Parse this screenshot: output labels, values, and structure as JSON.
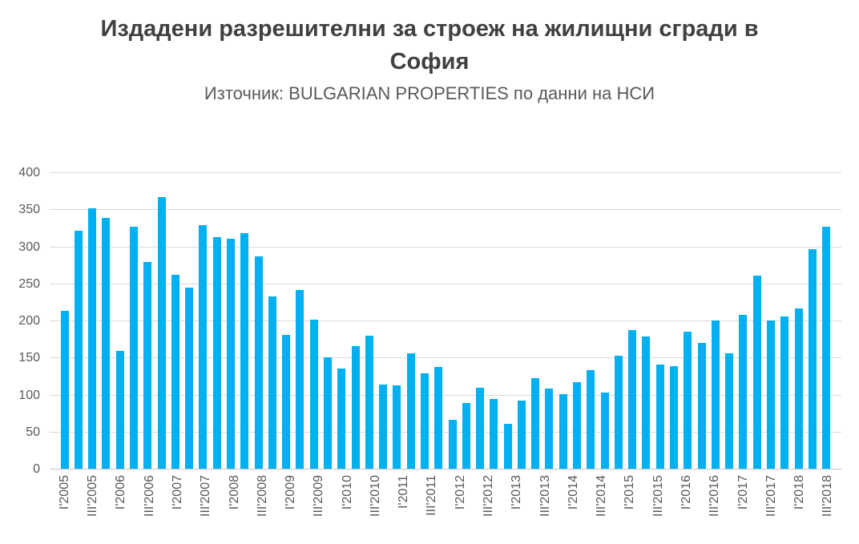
{
  "header": {
    "title": "Издадени разрешителни за строеж на жилищни сгради в София",
    "subtitle": "Източник: BULGARIAN PROPERTIES по данни на НСИ"
  },
  "chart_data": {
    "type": "bar",
    "title": "Издадени разрешителни за строеж на жилищни сгради в София",
    "subtitle": "Източник: BULGARIAN PROPERTIES по данни на НСИ",
    "categories": [
      "I'2005",
      "II'2005",
      "III'2005",
      "IV'2005",
      "I'2006",
      "II'2006",
      "III'2006",
      "IV'2006",
      "I'2007",
      "II'2007",
      "III'2007",
      "IV'2007",
      "I'2008",
      "II'2008",
      "III'2008",
      "IV'2008",
      "I'2009",
      "II'2009",
      "III'2009",
      "IV'2009",
      "I'2010",
      "II'2010",
      "III'2010",
      "IV'2010",
      "I'2011",
      "II'2011",
      "III'2011",
      "IV'2011",
      "I'2012",
      "II'2012",
      "III'2012",
      "IV'2012",
      "I'2013",
      "II'2013",
      "III'2013",
      "IV'2013",
      "I'2014",
      "II'2014",
      "III'2014",
      "IV'2014",
      "I'2015",
      "II'2015",
      "III'2015",
      "IV'2015",
      "I'2016",
      "II'2016",
      "III'2016",
      "IV'2016",
      "I'2017",
      "II'2017",
      "III'2017",
      "IV'2017",
      "I'2018",
      "II'2018",
      "III'2018",
      "IV'2018"
    ],
    "values": [
      214,
      322,
      352,
      340,
      160,
      328,
      280,
      368,
      263,
      245,
      330,
      313,
      311,
      319,
      288,
      233,
      182,
      242,
      202,
      151,
      136,
      167,
      181,
      115,
      113,
      157,
      130,
      138,
      67,
      90,
      110,
      95,
      62,
      93,
      123,
      109,
      102,
      118,
      134,
      104,
      154,
      188,
      180,
      142,
      140,
      186,
      171,
      201,
      157,
      209,
      262,
      201,
      206,
      217,
      297,
      328
    ],
    "visible_x_tick_labels": [
      "I'2005",
      "III'2005",
      "I'2006",
      "III'2006",
      "I'2007",
      "III'2007",
      "I'2008",
      "III'2008",
      "I'2009",
      "III'2009",
      "I'2010",
      "III'2010",
      "I'2011",
      "III'2011",
      "I'2012",
      "III'2012",
      "I'2013",
      "III'2013",
      "I'2014",
      "III'2014",
      "I'2015",
      "III'2015",
      "I'2016",
      "III'2016",
      "I'2017",
      "III'2017",
      "I'2018",
      "III'2018"
    ],
    "x_tick_every": 2,
    "xlabel": "",
    "ylabel": "",
    "ylim": [
      0,
      400
    ],
    "yticks": [
      0,
      50,
      100,
      150,
      200,
      250,
      300,
      350,
      400
    ],
    "grid": "horizontal",
    "legend": "none",
    "colors": {
      "bar": "#00b0f0",
      "gridline": "#d9d9d9",
      "axis_text": "#595959",
      "title_text": "#404040"
    }
  }
}
